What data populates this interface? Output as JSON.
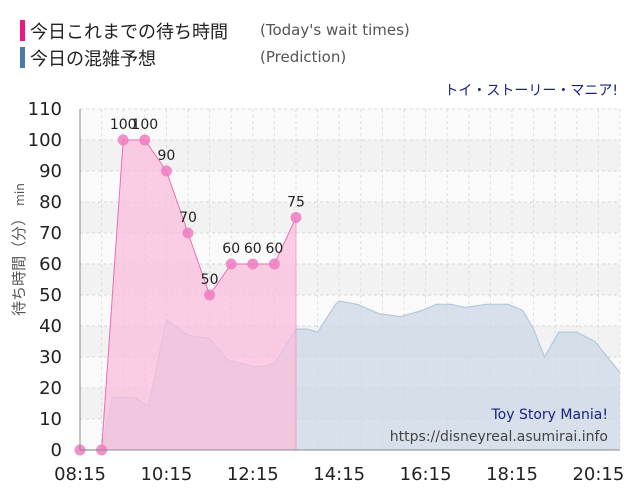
{
  "legend": [
    {
      "label": "今日これまでの待ち時間",
      "sub": "(Today's wait times)",
      "color": "#e8197f"
    },
    {
      "label": "今日の混雑予想",
      "sub": "(Prediction)",
      "color": "#4a7aa8"
    }
  ],
  "attraction_jp": "トイ・ストーリー・マニア!",
  "attraction_en": "Toy Story Mania!",
  "site_url": "https://disneyreal.asumirai.info",
  "colors": {
    "actual_line": "#e76fb3",
    "actual_fill": "#f9bddc",
    "actual_point": "#ee7dc2",
    "predicted_line": "#b4c7da",
    "predicted_fill": "#ccd8e6",
    "title_color": "#1a237e",
    "band_color": "#f2f2f2"
  },
  "chart_data": {
    "type": "area",
    "ylabel_jp": "待ち時間（分）",
    "ylabel_unit": "min",
    "ylim": [
      0,
      110
    ],
    "yticks": [
      0,
      10,
      20,
      30,
      40,
      50,
      60,
      70,
      80,
      90,
      100,
      110
    ],
    "xlim": [
      "08:15",
      "20:45"
    ],
    "xticks": [
      "08:15",
      "10:15",
      "12:15",
      "14:15",
      "16:15",
      "18:15",
      "20:15"
    ],
    "grid": true,
    "series": [
      {
        "name": "今日これまでの待ち時間",
        "x": [
          "08:15",
          "08:45",
          "09:15",
          "09:45",
          "10:15",
          "10:45",
          "11:15",
          "11:45",
          "12:15",
          "12:45",
          "13:15"
        ],
        "values": [
          0,
          0,
          100,
          100,
          90,
          70,
          50,
          60,
          60,
          60,
          75
        ],
        "labels": [
          null,
          null,
          "100",
          "100",
          "90",
          "70",
          "50",
          "60",
          "60",
          "60",
          "75"
        ]
      },
      {
        "name": "今日の混雑予想",
        "x": [
          "08:15",
          "08:45",
          "09:00",
          "09:30",
          "09:50",
          "10:15",
          "10:45",
          "11:15",
          "11:40",
          "12:15",
          "12:30",
          "12:45",
          "13:15",
          "13:30",
          "13:45",
          "14:10",
          "14:15",
          "14:40",
          "15:10",
          "15:40",
          "16:10",
          "16:30",
          "16:50",
          "17:10",
          "17:40",
          "18:10",
          "18:30",
          "18:45",
          "19:00",
          "19:20",
          "19:45",
          "20:10",
          "20:45"
        ],
        "values": [
          0,
          0,
          17,
          17,
          14,
          42,
          37,
          36,
          29,
          27,
          27,
          28,
          39,
          39,
          38,
          47,
          48,
          47,
          44,
          43,
          45,
          47,
          47,
          46,
          47,
          47,
          45,
          39,
          30,
          38,
          38,
          35,
          25
        ]
      }
    ]
  }
}
